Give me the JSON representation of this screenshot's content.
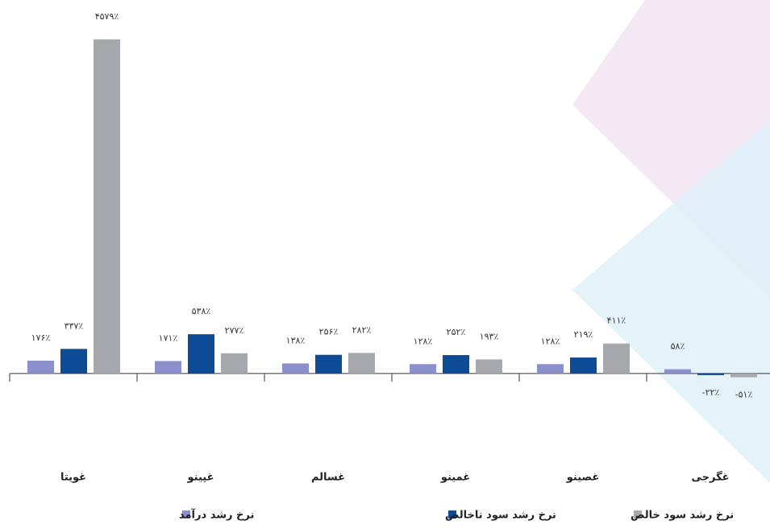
{
  "chart_data": {
    "type": "bar",
    "categories": [
      "غویتا",
      "غپینو",
      "غسالم",
      "غمینو",
      "غصینو",
      "غگرجی"
    ],
    "series": [
      {
        "name": "نرخ رشد درآمد",
        "color": "#8b8fcc",
        "values": [
          176,
          171,
          138,
          128,
          128,
          58
        ],
        "value_labels": [
          "۱۷۶٪",
          "۱۷۱٪",
          "۱۳۸٪",
          "۱۲۸٪",
          "۱۲۸٪",
          "۵۸٪"
        ]
      },
      {
        "name": "نرخ رشد سود ناخالص",
        "color": "#0d4c94",
        "values": [
          337,
          538,
          256,
          252,
          219,
          -22
        ],
        "value_labels": [
          "۳۳۷٪",
          "۵۳۸٪",
          "۲۵۶٪",
          "۲۵۲٪",
          "۲۱۹٪",
          "-۲۲٪"
        ]
      },
      {
        "name": "نرخ رشد سود خالص",
        "color": "#a7a8ab",
        "values": [
          4579,
          277,
          282,
          193,
          411,
          -51
        ],
        "value_labels": [
          "۴۵۷۹٪",
          "۲۷۷٪",
          "۲۸۲٪",
          "۱۹۳٪",
          "۴۱۱٪",
          "-۵۱٪"
        ]
      }
    ],
    "ylim": [
      -200,
      4600
    ]
  }
}
